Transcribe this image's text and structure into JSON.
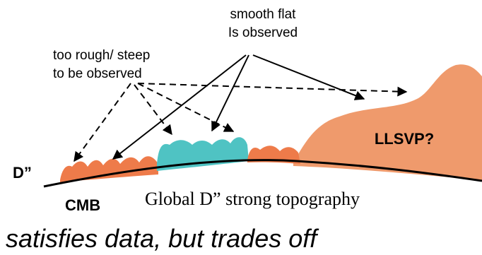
{
  "labels": {
    "smooth_flat": [
      "smooth flat",
      "Is observed"
    ],
    "too_rough": [
      "too rough/ steep",
      "to be observed"
    ],
    "llsvp": "LLSVP?",
    "d_double_prime": "D”",
    "cmb": "CMB",
    "global": "Global D” strong topography",
    "caption": "satisfies data, but trades off"
  }
}
